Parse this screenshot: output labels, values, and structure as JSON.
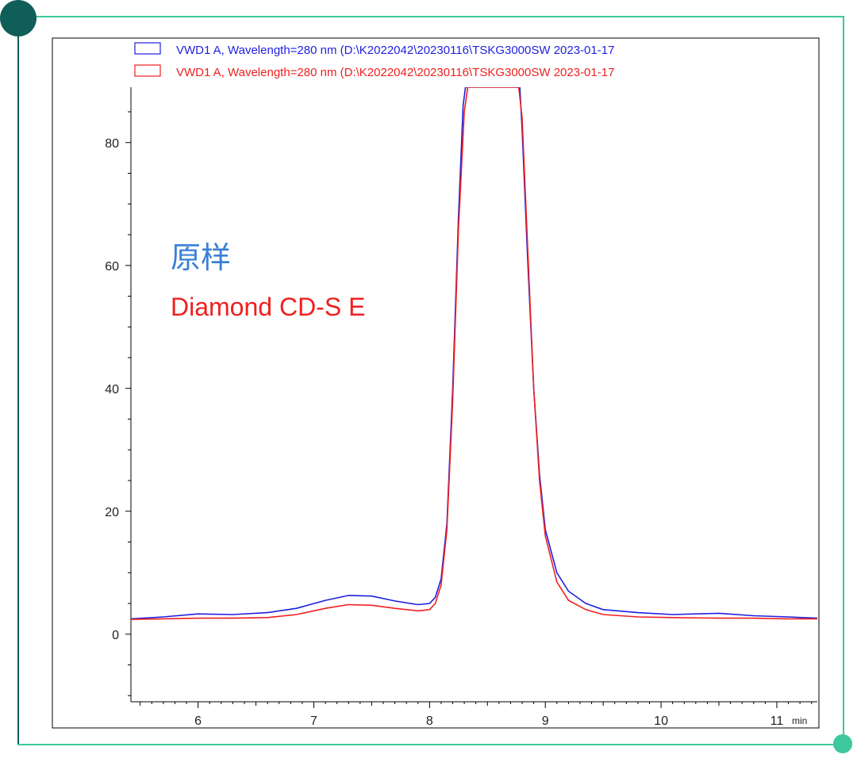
{
  "colors": {
    "frame_dark": "#0f5e57",
    "frame_light": "#3ec8a0",
    "series_blue": "#1f1fe0",
    "series_red": "#ef2020",
    "annot_blue": "#3a7fd5"
  },
  "legend": [
    {
      "text": "VWD1 A, Wavelength=280  nm (D:\\K2022042\\20230116\\TSKG3000SW  2023-01-17",
      "color": "#1f1fe0"
    },
    {
      "text": "VWD1 A, Wavelength=280  nm (D:\\K2022042\\20230116\\TSKG3000SW  2023-01-17",
      "color": "#ef2020"
    }
  ],
  "annotations": {
    "sample": "原样",
    "product": "Diamond CD-S E"
  },
  "chart_data": {
    "type": "line",
    "xlabel": "",
    "x_unit": "min",
    "ylabel": "",
    "xlim": [
      5.42,
      11.35
    ],
    "ylim": [
      -11,
      89
    ],
    "x_ticks": [
      6,
      7,
      8,
      9,
      10,
      11
    ],
    "y_ticks": [
      0,
      20,
      40,
      60,
      80
    ],
    "grid": false,
    "legend_position": "top",
    "series": [
      {
        "color": "#1f1fe0",
        "points": [
          [
            5.42,
            2.5
          ],
          [
            5.7,
            2.8
          ],
          [
            6.0,
            3.3
          ],
          [
            6.3,
            3.2
          ],
          [
            6.6,
            3.5
          ],
          [
            6.85,
            4.2
          ],
          [
            7.1,
            5.5
          ],
          [
            7.3,
            6.3
          ],
          [
            7.5,
            6.2
          ],
          [
            7.7,
            5.4
          ],
          [
            7.9,
            4.8
          ],
          [
            8.0,
            5.0
          ],
          [
            8.05,
            6.0
          ],
          [
            8.1,
            9.0
          ],
          [
            8.15,
            18.0
          ],
          [
            8.2,
            40.0
          ],
          [
            8.25,
            68.0
          ],
          [
            8.29,
            86.0
          ],
          [
            8.31,
            89.0
          ],
          [
            8.78,
            89.0
          ],
          [
            8.8,
            82.0
          ],
          [
            8.85,
            60.0
          ],
          [
            8.9,
            40.0
          ],
          [
            8.95,
            26.0
          ],
          [
            9.0,
            17.0
          ],
          [
            9.1,
            10.0
          ],
          [
            9.2,
            7.0
          ],
          [
            9.35,
            5.0
          ],
          [
            9.5,
            4.0
          ],
          [
            9.8,
            3.5
          ],
          [
            10.1,
            3.2
          ],
          [
            10.5,
            3.4
          ],
          [
            10.8,
            3.0
          ],
          [
            11.1,
            2.8
          ],
          [
            11.35,
            2.6
          ]
        ]
      },
      {
        "color": "#ef2020",
        "points": [
          [
            5.42,
            2.4
          ],
          [
            5.7,
            2.5
          ],
          [
            6.0,
            2.6
          ],
          [
            6.3,
            2.6
          ],
          [
            6.6,
            2.7
          ],
          [
            6.85,
            3.2
          ],
          [
            7.1,
            4.2
          ],
          [
            7.3,
            4.8
          ],
          [
            7.5,
            4.7
          ],
          [
            7.7,
            4.2
          ],
          [
            7.9,
            3.8
          ],
          [
            8.0,
            4.0
          ],
          [
            8.05,
            5.0
          ],
          [
            8.1,
            8.0
          ],
          [
            8.15,
            17.0
          ],
          [
            8.2,
            38.0
          ],
          [
            8.25,
            66.0
          ],
          [
            8.3,
            85.0
          ],
          [
            8.33,
            89.0
          ],
          [
            8.77,
            89.0
          ],
          [
            8.8,
            84.0
          ],
          [
            8.85,
            62.0
          ],
          [
            8.9,
            40.0
          ],
          [
            8.95,
            25.0
          ],
          [
            9.0,
            16.0
          ],
          [
            9.1,
            8.5
          ],
          [
            9.2,
            5.5
          ],
          [
            9.35,
            4.0
          ],
          [
            9.5,
            3.2
          ],
          [
            9.8,
            2.8
          ],
          [
            10.1,
            2.7
          ],
          [
            10.5,
            2.6
          ],
          [
            10.8,
            2.6
          ],
          [
            11.1,
            2.5
          ],
          [
            11.35,
            2.5
          ]
        ]
      }
    ]
  }
}
